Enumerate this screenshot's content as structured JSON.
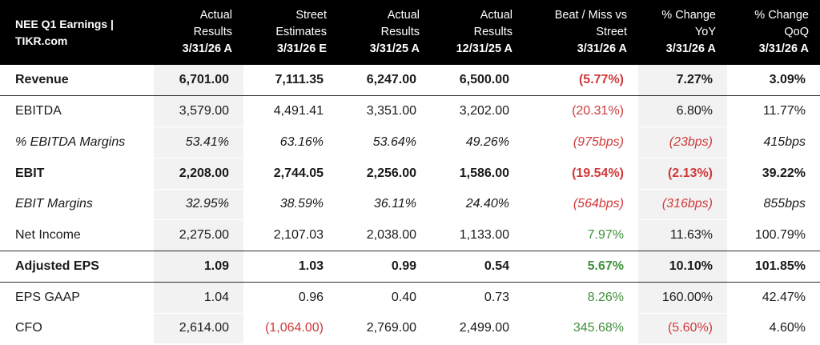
{
  "table": {
    "corner_line1": "NEE Q1 Earnings |",
    "corner_line2": "TIKR.com",
    "columns": [
      {
        "line1": "Actual",
        "line2": "Results",
        "date": "3/31/26 A"
      },
      {
        "line1": "Street",
        "line2": "Estimates",
        "date": "3/31/26 E"
      },
      {
        "line1": "Actual",
        "line2": "Results",
        "date": "3/31/25 A"
      },
      {
        "line1": "Actual",
        "line2": "Results",
        "date": "12/31/25 A"
      },
      {
        "line1": "Beat / Miss vs",
        "line2": "Street",
        "date": "3/31/26 A"
      },
      {
        "line1": "% Change",
        "line2": "YoY",
        "date": "3/31/26 A"
      },
      {
        "line1": "% Change",
        "line2": "QoQ",
        "date": "3/31/26 A"
      }
    ],
    "rows": [
      {
        "label": "Revenue",
        "values": [
          "6,701.00",
          "7,111.35",
          "6,247.00",
          "6,500.00",
          "(5.77%)",
          "7.27%",
          "3.09%"
        ]
      },
      {
        "label": "EBITDA",
        "values": [
          "3,579.00",
          "4,491.41",
          "3,351.00",
          "3,202.00",
          "(20.31%)",
          "6.80%",
          "11.77%"
        ]
      },
      {
        "label": "% EBITDA Margins",
        "values": [
          "53.41%",
          "63.16%",
          "53.64%",
          "49.26%",
          "(975bps)",
          "(23bps)",
          "415bps"
        ]
      },
      {
        "label": "EBIT",
        "values": [
          "2,208.00",
          "2,744.05",
          "2,256.00",
          "1,586.00",
          "(19.54%)",
          "(2.13%)",
          "39.22%"
        ]
      },
      {
        "label": "EBIT Margins",
        "values": [
          "32.95%",
          "38.59%",
          "36.11%",
          "24.40%",
          "(564bps)",
          "(316bps)",
          "855bps"
        ]
      },
      {
        "label": "Net Income",
        "values": [
          "2,275.00",
          "2,107.03",
          "2,038.00",
          "1,133.00",
          "7.97%",
          "11.63%",
          "100.79%"
        ]
      },
      {
        "label": "Adjusted EPS",
        "values": [
          "1.09",
          "1.03",
          "0.99",
          "0.54",
          "5.67%",
          "10.10%",
          "101.85%"
        ]
      },
      {
        "label": "EPS GAAP",
        "values": [
          "1.04",
          "0.96",
          "0.40",
          "0.73",
          "8.26%",
          "160.00%",
          "42.47%"
        ]
      },
      {
        "label": "CFO",
        "values": [
          "2,614.00",
          "(1,064.00)",
          "2,769.00",
          "2,499.00",
          "345.68%",
          "(5.60%)",
          "4.60%"
        ]
      }
    ]
  },
  "colors": {
    "header_bg": "#000000",
    "negative": "#d0393a",
    "positive": "#3f8f3a",
    "shaded_column": "#f2f2f2"
  }
}
